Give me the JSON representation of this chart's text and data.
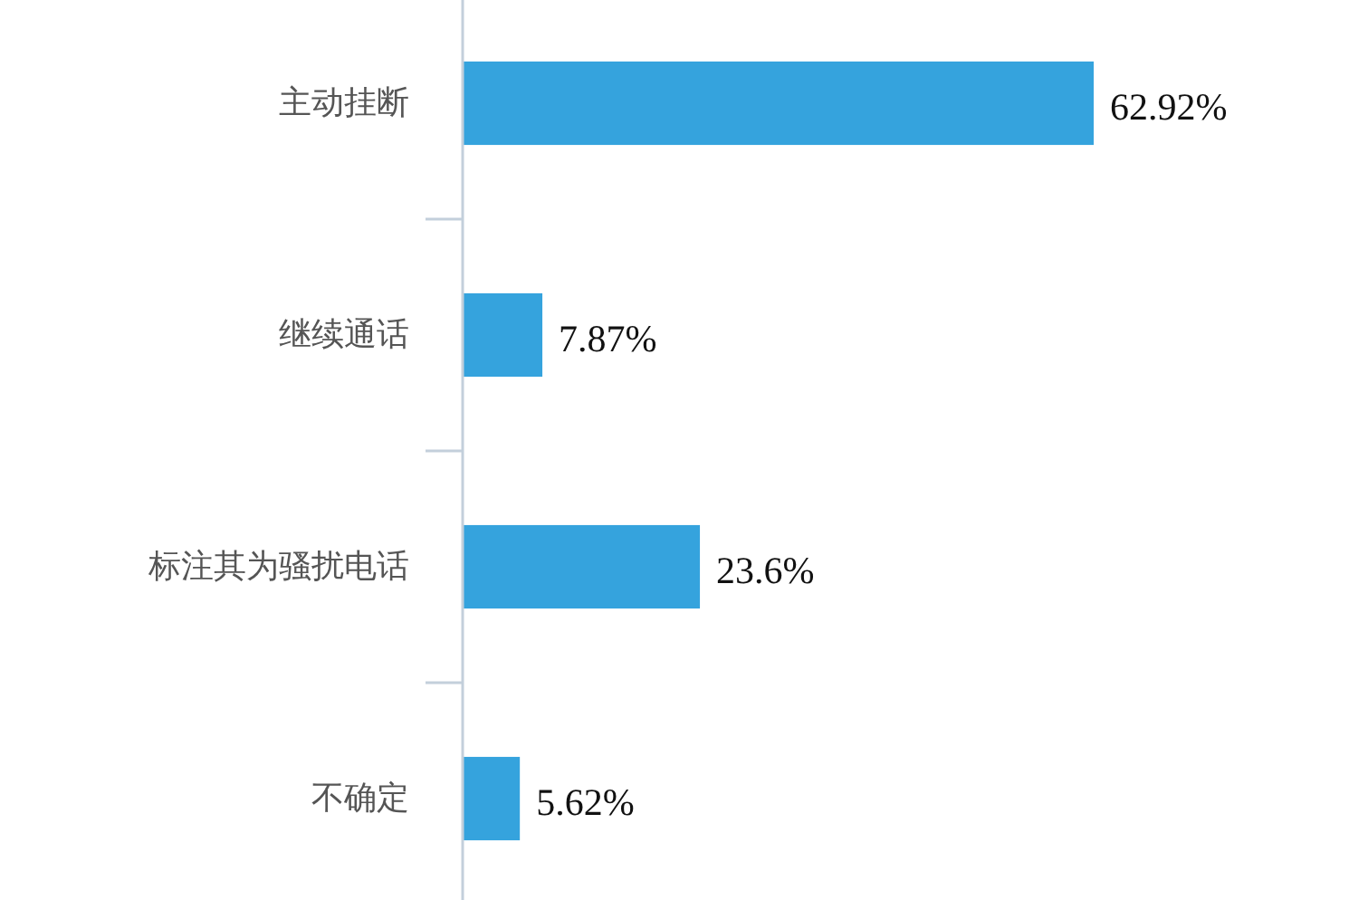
{
  "chart_data": {
    "type": "bar",
    "orientation": "horizontal",
    "categories": [
      "主动挂断",
      "继续通话",
      "标注其为骚扰电话",
      "不确定"
    ],
    "values": [
      62.92,
      7.87,
      23.6,
      5.62
    ],
    "value_labels": [
      "62.92%",
      "7.87%",
      "23.6%",
      "5.62%"
    ],
    "color": "#35a3dd"
  }
}
